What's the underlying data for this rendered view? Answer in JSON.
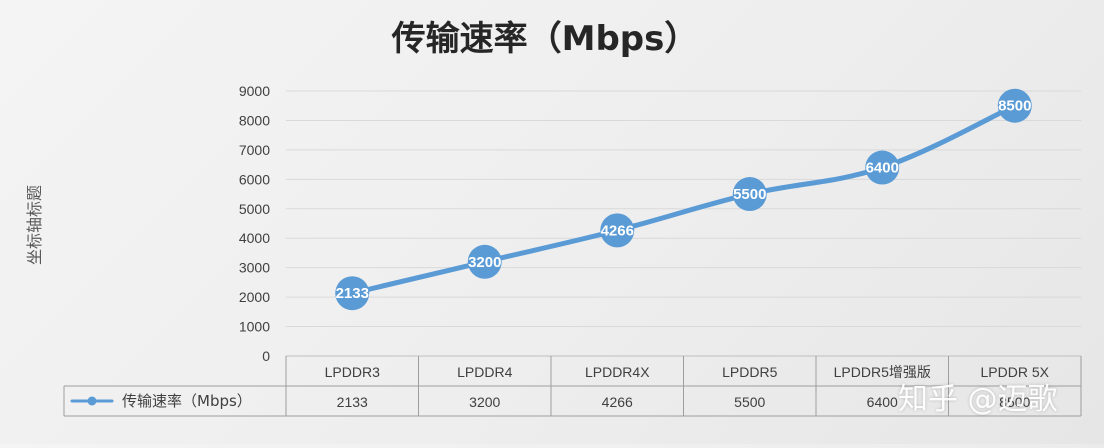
{
  "chart_data": {
    "type": "line",
    "title": "传输速率（Mbps）",
    "ylabel": "坐标轴标题",
    "xlabel": "",
    "categories": [
      "LPDDR3",
      "LPDDR4",
      "LPDDR4X",
      "LPDDR5",
      "LPDDR5增强版",
      "LPDDR 5X"
    ],
    "series": [
      {
        "name": "传输速率（Mbps）",
        "values": [
          2133,
          3200,
          4266,
          5500,
          6400,
          8500
        ],
        "table_values": [
          "2133",
          "3200",
          "4266",
          "5500",
          "6400",
          "8500"
        ]
      }
    ],
    "ylim": [
      0,
      9000
    ],
    "yticks": [
      "0",
      "1000",
      "2000",
      "3000",
      "4000",
      "5000",
      "6000",
      "7000",
      "8000",
      "9000"
    ],
    "grid": true,
    "legend": "data-table",
    "data_labels": true,
    "colors": {
      "line": "#5b9bd5",
      "marker": "#5b9bd5",
      "label": "#ffffff",
      "grid": "#d9d9d9",
      "axis": "#bfbfbf",
      "table_border": "#9e9e9e",
      "text": "#404040",
      "title": "#262626"
    }
  },
  "watermark": "知乎 @迈歌"
}
